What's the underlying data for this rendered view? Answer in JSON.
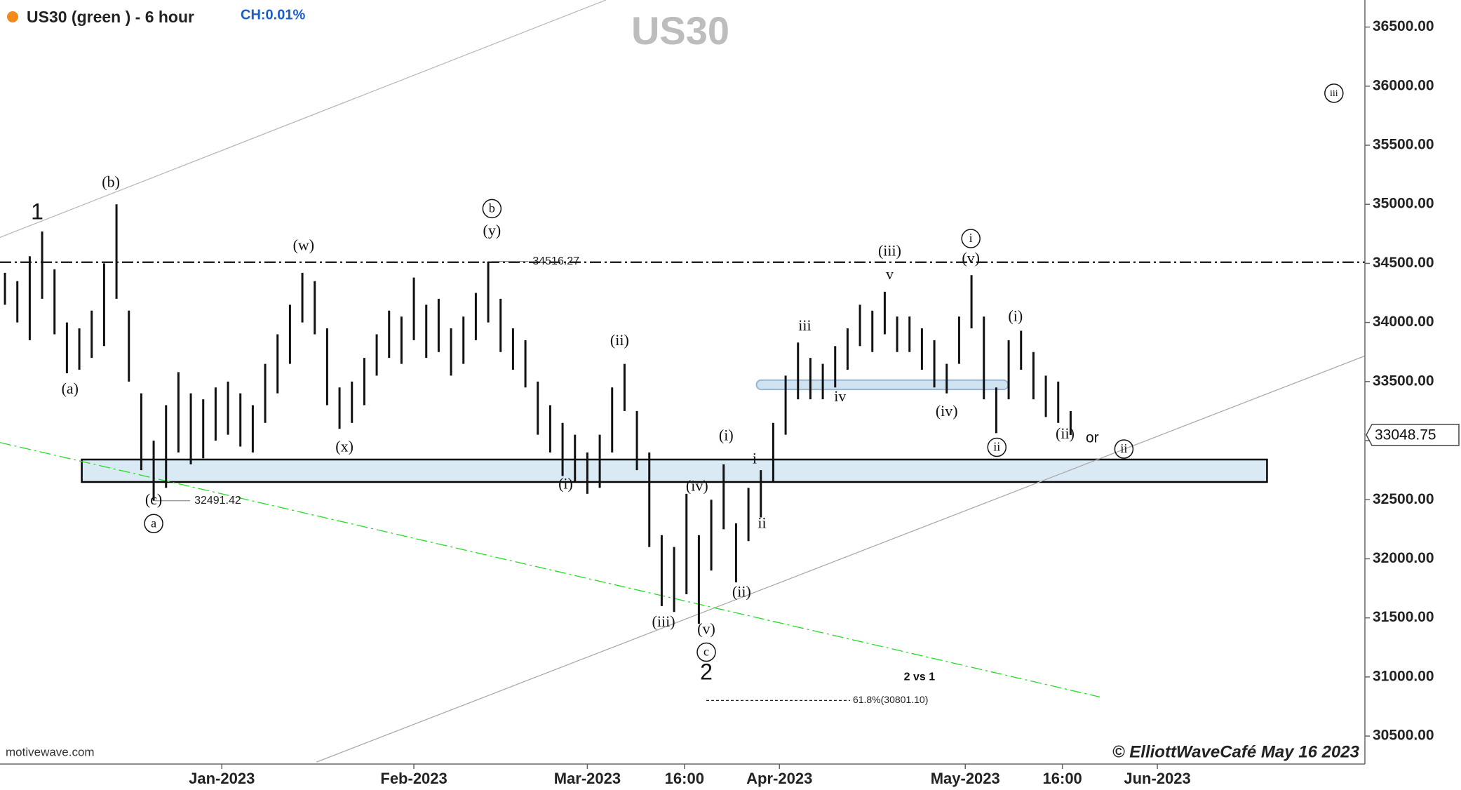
{
  "chart_data": {
    "type": "range_bar",
    "title": "US30",
    "header": "US30 (green ) - 6 hour",
    "change": "CH:0.01%",
    "source": "motivewave.com",
    "credit": "© ElliottWaveCafé May 16 2023",
    "color": "#111111",
    "x": [
      -35,
      -33,
      -31,
      -29,
      -27,
      -25,
      -23,
      -21,
      -19,
      -17,
      -15,
      -13,
      -11,
      -9,
      -7,
      -5,
      -3,
      -1,
      1,
      3,
      5,
      7,
      9,
      11,
      13,
      15,
      17,
      19,
      21,
      23,
      25,
      27,
      29,
      31,
      33,
      35,
      37,
      39,
      41,
      43,
      45,
      47,
      49,
      51,
      53,
      55,
      57,
      59,
      61,
      63,
      65,
      67,
      69,
      71,
      73,
      75,
      77,
      79,
      81,
      83,
      85,
      87,
      89,
      91,
      93,
      95,
      97,
      99,
      101,
      103,
      105,
      107,
      109,
      111,
      113,
      115,
      117,
      119,
      121,
      123,
      125,
      127,
      129,
      131,
      133,
      135,
      137
    ],
    "high": [
      34420,
      34350,
      34560,
      34770,
      34450,
      34000,
      33950,
      34100,
      34500,
      35000,
      34100,
      33400,
      33000,
      33300,
      33580,
      33400,
      33350,
      33450,
      33500,
      33400,
      33300,
      33650,
      33900,
      34150,
      34420,
      34350,
      33950,
      33450,
      33500,
      33700,
      33900,
      34100,
      34050,
      34380,
      34150,
      34200,
      33950,
      34050,
      34250,
      34516,
      34200,
      33950,
      33850,
      33500,
      33300,
      33150,
      33050,
      32900,
      33050,
      33450,
      33650,
      33250,
      32900,
      32200,
      32100,
      32550,
      32200,
      32500,
      32800,
      32300,
      32600,
      32750,
      33150,
      33550,
      33830,
      33700,
      33650,
      33800,
      33950,
      34150,
      34100,
      34260,
      34050,
      34050,
      33950,
      33850,
      33650,
      34050,
      34400,
      34050,
      33450,
      33850,
      33930,
      33750,
      33550,
      33500,
      33250
    ],
    "low": [
      34150,
      34000,
      33850,
      34200,
      33900,
      33570,
      33600,
      33700,
      33800,
      34200,
      33500,
      32750,
      32491,
      32600,
      32900,
      32800,
      32850,
      33000,
      33050,
      32950,
      32900,
      33150,
      33400,
      33650,
      34000,
      33900,
      33300,
      33100,
      33150,
      33300,
      33550,
      33700,
      33650,
      33850,
      33700,
      33750,
      33550,
      33650,
      33850,
      34000,
      33750,
      33600,
      33450,
      33050,
      32900,
      32700,
      32650,
      32550,
      32600,
      32900,
      33250,
      32750,
      32100,
      31600,
      31550,
      31700,
      31450,
      31900,
      32250,
      31800,
      32150,
      32350,
      32650,
      33050,
      33350,
      33350,
      33350,
      33450,
      33600,
      33800,
      33750,
      33900,
      33750,
      33750,
      33600,
      33450,
      33400,
      33650,
      33950,
      33350,
      33063,
      33350,
      33600,
      33350,
      33200,
      33150,
      33048
    ],
    "last_price": 33048.75,
    "xlim": [
      -35.8,
      184.5
    ],
    "ylim": [
      30263,
      36729
    ],
    "xticks": [
      {
        "value": 0,
        "label": "Jan-2023"
      },
      {
        "value": 31,
        "label": "Feb-2023"
      },
      {
        "value": 59,
        "label": "Mar-2023"
      },
      {
        "value": 74.67,
        "label": "16:00"
      },
      {
        "value": 90,
        "label": "Apr-2023"
      },
      {
        "value": 120,
        "label": "May-2023"
      },
      {
        "value": 135.67,
        "label": "16:00"
      },
      {
        "value": 151,
        "label": "Jun-2023"
      }
    ],
    "yticks": [
      {
        "value": 30500,
        "label": "30500.00"
      },
      {
        "value": 31000,
        "label": "31000.00"
      },
      {
        "value": 31500,
        "label": "31500.00"
      },
      {
        "value": 32000,
        "label": "32000.00"
      },
      {
        "value": 32500,
        "label": "32500.00"
      },
      {
        "value": 33000,
        "label": "33000.00"
      },
      {
        "value": 33500,
        "label": "33500.00"
      },
      {
        "value": 34000,
        "label": "34000.00"
      },
      {
        "value": 34500,
        "label": "34500.00"
      },
      {
        "value": 35000,
        "label": "35000.00"
      },
      {
        "value": 35500,
        "label": "35500.00"
      },
      {
        "value": 36000,
        "label": "36000.00"
      },
      {
        "value": 36500,
        "label": "36500.00"
      }
    ],
    "lines": [
      {
        "x": [
          -35.8,
          62
        ],
        "y": [
          34720,
          36729
        ],
        "color": "#bbbbbb",
        "style": "solid"
      },
      {
        "x": [
          15.3,
          184.5
        ],
        "y": [
          30280,
          33717
        ],
        "color": "#aaaaaa",
        "style": "solid"
      },
      {
        "x": [
          -35.8,
          141.7
        ],
        "y": [
          32984,
          30831
        ],
        "color": "#22dd22",
        "style": "dashdot"
      },
      {
        "x": [
          -35.8,
          184.5
        ],
        "y": [
          34510,
          34510
        ],
        "color": "#111111",
        "style": "dashdot"
      }
    ],
    "zones": [
      {
        "x": [
          -22.6,
          168.7
        ],
        "y": [
          32650,
          32840
        ],
        "color": "#d9eaf5",
        "border": "#000000"
      },
      {
        "x": [
          86.3,
          126.9
        ],
        "y": [
          33433,
          33512
        ],
        "color": "#cfe2f1",
        "border": "#9ab5cc"
      }
    ],
    "price_labels": [
      {
        "x": 43.6,
        "value": 34516.27
      },
      {
        "x": -11,
        "value": 32491.42
      }
    ],
    "fib": {
      "x": [
        78.2,
        101.4
      ],
      "value": 30801.1,
      "label": "61.8%(30801.10)"
    },
    "annotations": [
      {
        "text": "1",
        "x": -29.8,
        "y": 34931,
        "style": "big"
      },
      {
        "text": "(b)",
        "x": -17.9,
        "y": 35183,
        "style": "wave"
      },
      {
        "text": "(a)",
        "x": -24.5,
        "y": 33433,
        "style": "wave"
      },
      {
        "text": "(c)",
        "x": -11,
        "y": 32495,
        "style": "wave"
      },
      {
        "text": "a",
        "x": -11,
        "y": 32298,
        "style": "wave",
        "circled": true
      },
      {
        "text": "(w)",
        "x": 13.2,
        "y": 34647,
        "style": "wave"
      },
      {
        "text": "(x)",
        "x": 19.8,
        "y": 32944,
        "style": "wave"
      },
      {
        "text": "b",
        "x": 43.6,
        "y": 34963,
        "style": "wave",
        "circled": true
      },
      {
        "text": "(y)",
        "x": 43.6,
        "y": 34773,
        "style": "wave"
      },
      {
        "text": "(i)",
        "x": 55.5,
        "y": 32629,
        "style": "wave"
      },
      {
        "text": "(ii)",
        "x": 64.2,
        "y": 33843,
        "style": "wave"
      },
      {
        "text": "(iii)",
        "x": 71.3,
        "y": 31462,
        "style": "wave"
      },
      {
        "text": "(iv)",
        "x": 76.7,
        "y": 32613,
        "style": "wave"
      },
      {
        "text": "(v)",
        "x": 78.2,
        "y": 31399,
        "style": "wave"
      },
      {
        "text": "c",
        "x": 78.2,
        "y": 31210,
        "style": "wave",
        "circled": true
      },
      {
        "text": "2",
        "x": 78.2,
        "y": 31036,
        "style": "big"
      },
      {
        "text": "(i)",
        "x": 81.4,
        "y": 33039,
        "style": "wave"
      },
      {
        "text": "(ii)",
        "x": 83.9,
        "y": 31714,
        "style": "wave"
      },
      {
        "text": "i",
        "x": 86,
        "y": 32842,
        "style": "wave"
      },
      {
        "text": "ii",
        "x": 87.2,
        "y": 32298,
        "style": "wave"
      },
      {
        "text": "iii",
        "x": 94.1,
        "y": 33969,
        "style": "wave"
      },
      {
        "text": "iv",
        "x": 99.8,
        "y": 33370,
        "style": "wave"
      },
      {
        "text": "v",
        "x": 107.8,
        "y": 34403,
        "style": "wave"
      },
      {
        "text": "(iii)",
        "x": 107.8,
        "y": 34600,
        "style": "wave"
      },
      {
        "text": "i",
        "x": 120.9,
        "y": 34710,
        "style": "wave",
        "circled": true
      },
      {
        "text": "(v)",
        "x": 120.9,
        "y": 34537,
        "style": "wave"
      },
      {
        "text": "(iv)",
        "x": 117,
        "y": 33244,
        "style": "wave"
      },
      {
        "text": "(i)",
        "x": 128.1,
        "y": 34048,
        "style": "wave"
      },
      {
        "text": "ii",
        "x": 125.1,
        "y": 32944,
        "style": "wave",
        "circled": true
      },
      {
        "text": "(ii)",
        "x": 136.1,
        "y": 33055,
        "style": "wave"
      },
      {
        "text": "or",
        "x": 140.5,
        "y": 33023,
        "style": "sans"
      },
      {
        "text": "ii",
        "x": 145.6,
        "y": 32929,
        "style": "wave",
        "circled": true
      },
      {
        "text": "iii",
        "x": 179.5,
        "y": 35940,
        "style": "wave",
        "circled": true
      },
      {
        "text": "2 vs 1",
        "x": 112.6,
        "y": 31005,
        "style": "bold"
      }
    ]
  }
}
